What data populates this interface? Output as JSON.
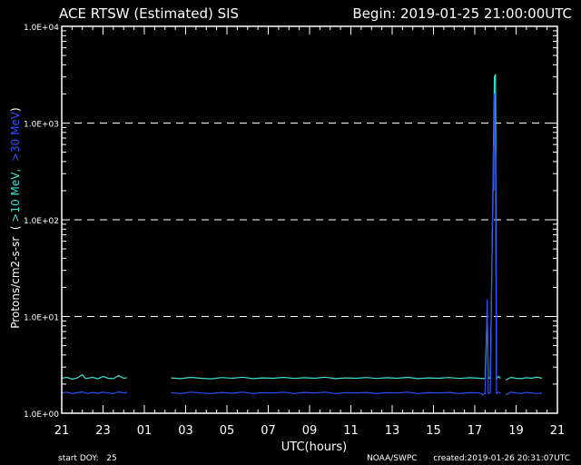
{
  "header": {
    "title": "ACE RTSW (Estimated) SIS",
    "begin": "Begin: 2019-01-25 21:00:00UTC"
  },
  "footer": {
    "start_doy": "start DOY:   25",
    "source": "NOAA/SWPC",
    "created": "created:2019-01-26 20:31:07UTC"
  },
  "chart_data": {
    "type": "line",
    "title": "ACE RTSW (Estimated) SIS",
    "xlabel": "UTC(hours)",
    "ylabel": {
      "prefix": "Protons/cm2-s-sr",
      "open": "(",
      "series_a": ">10 MeV,",
      "series_b": ">30 MeV",
      "close": ")"
    },
    "xlim_hours": [
      0,
      48
    ],
    "x_ticks": [
      "21",
      "23",
      "01",
      "03",
      "05",
      "07",
      "09",
      "11",
      "13",
      "15",
      "17",
      "19",
      "21"
    ],
    "y_scale": "log",
    "ylim": [
      1.0,
      10000.0
    ],
    "y_ticks": [
      "1.0E+00",
      "1.0E+01",
      "1.0E+02",
      "1.0E+03",
      "1.0E+04"
    ],
    "reference_lines": [
      10,
      100,
      1000
    ],
    "colors": {
      "series_a": "#40e0d0",
      "series_b": "#3050ff",
      "grid": "#ffffff"
    },
    "series": [
      {
        "key": "series_a",
        "segments": [
          [
            [
              0.0,
              2.3
            ],
            [
              0.5,
              2.35
            ],
            [
              1.0,
              2.25
            ],
            [
              1.5,
              2.32
            ],
            [
              2.0,
              2.5
            ],
            [
              2.3,
              2.28
            ],
            [
              3.0,
              2.35
            ],
            [
              3.5,
              2.27
            ],
            [
              4.0,
              2.4
            ],
            [
              4.5,
              2.3
            ],
            [
              5.0,
              2.28
            ],
            [
              5.5,
              2.45
            ],
            [
              6.0,
              2.3
            ],
            [
              6.3,
              2.33
            ]
          ],
          [
            [
              10.6,
              2.32
            ],
            [
              11.5,
              2.28
            ],
            [
              12.5,
              2.35
            ],
            [
              13.5,
              2.3
            ],
            [
              14.5,
              2.27
            ],
            [
              15.5,
              2.34
            ],
            [
              16.5,
              2.3
            ],
            [
              17.5,
              2.36
            ],
            [
              18.5,
              2.28
            ],
            [
              19.5,
              2.32
            ],
            [
              20.5,
              2.3
            ],
            [
              21.5,
              2.35
            ],
            [
              22.5,
              2.29
            ],
            [
              23.5,
              2.33
            ],
            [
              24.5,
              2.3
            ],
            [
              25.5,
              2.36
            ],
            [
              26.5,
              2.28
            ],
            [
              27.5,
              2.32
            ],
            [
              28.5,
              2.3
            ],
            [
              29.5,
              2.34
            ],
            [
              30.5,
              2.29
            ],
            [
              31.5,
              2.33
            ],
            [
              32.5,
              2.3
            ],
            [
              33.5,
              2.35
            ],
            [
              34.5,
              2.28
            ],
            [
              35.5,
              2.32
            ],
            [
              36.5,
              2.3
            ],
            [
              37.5,
              2.34
            ],
            [
              38.5,
              2.29
            ],
            [
              39.5,
              2.33
            ],
            [
              40.5,
              2.3
            ]
          ],
          [
            [
              40.5,
              2.3
            ],
            [
              40.8,
              2.28
            ],
            [
              41.0,
              2.3
            ],
            [
              41.2,
              12.0
            ],
            [
              41.3,
              2.3
            ],
            [
              41.5,
              2.32
            ],
            [
              41.8,
              400
            ],
            [
              41.9,
              3000
            ],
            [
              42.0,
              3200
            ],
            [
              42.1,
              2.3
            ],
            [
              42.3,
              2.4
            ],
            [
              42.5,
              2.3
            ]
          ],
          [
            [
              43.0,
              2.2
            ],
            [
              43.5,
              2.35
            ],
            [
              44.0,
              2.3
            ],
            [
              44.5,
              2.28
            ],
            [
              45.0,
              2.33
            ],
            [
              45.5,
              2.3
            ],
            [
              46.0,
              2.36
            ],
            [
              46.5,
              2.3
            ]
          ]
        ]
      },
      {
        "key": "series_b",
        "segments": [
          [
            [
              0.0,
              1.62
            ],
            [
              0.5,
              1.65
            ],
            [
              1.0,
              1.6
            ],
            [
              1.5,
              1.63
            ],
            [
              2.0,
              1.66
            ],
            [
              2.5,
              1.6
            ],
            [
              3.0,
              1.64
            ],
            [
              3.5,
              1.61
            ],
            [
              4.0,
              1.65
            ],
            [
              4.5,
              1.62
            ],
            [
              5.0,
              1.6
            ],
            [
              5.5,
              1.66
            ],
            [
              6.0,
              1.62
            ],
            [
              6.3,
              1.64
            ]
          ],
          [
            [
              10.6,
              1.63
            ],
            [
              11.5,
              1.6
            ],
            [
              12.5,
              1.65
            ],
            [
              13.5,
              1.62
            ],
            [
              14.5,
              1.6
            ],
            [
              15.5,
              1.64
            ],
            [
              16.5,
              1.61
            ],
            [
              17.5,
              1.65
            ],
            [
              18.5,
              1.6
            ],
            [
              19.5,
              1.63
            ],
            [
              20.5,
              1.62
            ],
            [
              21.5,
              1.65
            ],
            [
              22.5,
              1.6
            ],
            [
              23.5,
              1.64
            ],
            [
              24.5,
              1.62
            ],
            [
              25.5,
              1.65
            ],
            [
              26.5,
              1.6
            ],
            [
              27.5,
              1.63
            ],
            [
              28.5,
              1.62
            ],
            [
              29.5,
              1.64
            ],
            [
              30.5,
              1.6
            ],
            [
              31.5,
              1.63
            ],
            [
              32.5,
              1.62
            ],
            [
              33.5,
              1.65
            ],
            [
              34.5,
              1.6
            ],
            [
              35.5,
              1.63
            ],
            [
              36.5,
              1.62
            ],
            [
              37.5,
              1.64
            ],
            [
              38.5,
              1.6
            ],
            [
              39.5,
              1.63
            ],
            [
              40.5,
              1.62
            ]
          ],
          [
            [
              40.5,
              1.62
            ],
            [
              40.8,
              1.55
            ],
            [
              41.0,
              1.6
            ],
            [
              41.2,
              15.0
            ],
            [
              41.3,
              1.6
            ],
            [
              41.5,
              1.62
            ],
            [
              41.8,
              600
            ],
            [
              41.85,
              200
            ],
            [
              41.9,
              2000
            ],
            [
              42.0,
              400
            ],
            [
              42.1,
              1.6
            ],
            [
              42.3,
              1.65
            ],
            [
              42.5,
              1.6
            ]
          ],
          [
            [
              43.0,
              1.55
            ],
            [
              43.5,
              1.65
            ],
            [
              44.0,
              1.62
            ],
            [
              44.5,
              1.6
            ],
            [
              45.0,
              1.64
            ],
            [
              45.5,
              1.62
            ],
            [
              46.0,
              1.6
            ],
            [
              46.5,
              1.62
            ]
          ]
        ]
      }
    ]
  }
}
